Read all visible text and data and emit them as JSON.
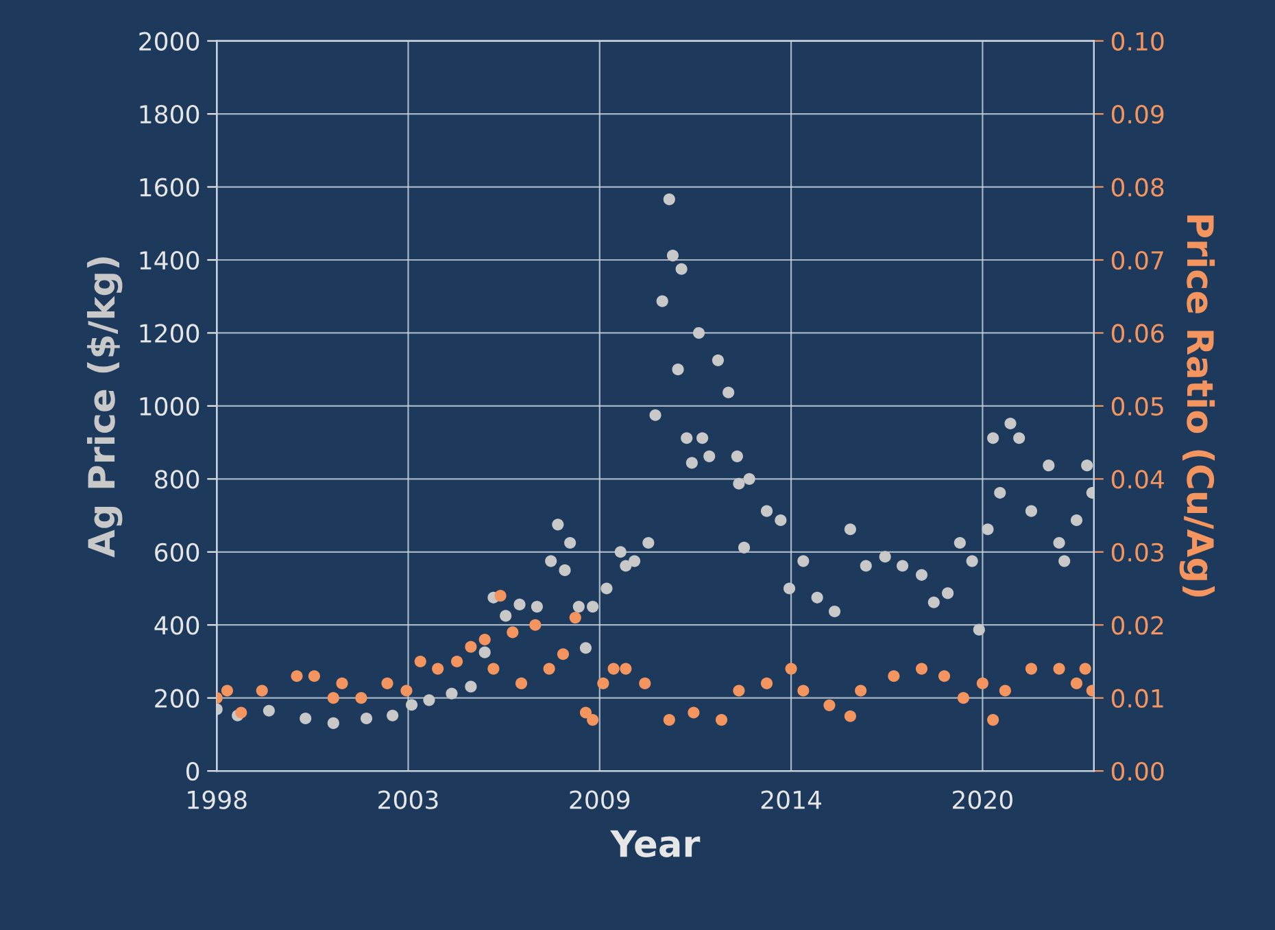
{
  "chart_data": {
    "type": "scatter",
    "xlabel": "Year",
    "ylabel": "Ag Price ($/kg)",
    "y2label": "Price Ratio (Cu/Ag)",
    "xlim": [
      1998,
      2023.2
    ],
    "xticks": [
      1998,
      {
        "value": 2003.5,
        "label": "2003"
      },
      2009,
      {
        "value": 2014.5,
        "label": "2014"
      },
      2020
    ],
    "ylim": [
      0,
      2000
    ],
    "yticks": [
      0,
      200,
      400,
      600,
      800,
      1000,
      1200,
      1400,
      1600,
      1800,
      2000
    ],
    "y2lim": [
      0,
      0.1
    ],
    "y2ticks": [
      {
        "value": 0,
        "label": "0.00"
      },
      {
        "value": 0.01,
        "label": "0.01"
      },
      {
        "value": 0.02,
        "label": "0.02"
      },
      {
        "value": 0.03,
        "label": "0.03"
      },
      {
        "value": 0.04,
        "label": "0.04"
      },
      {
        "value": 0.05,
        "label": "0.05"
      },
      {
        "value": 0.06,
        "label": "0.06"
      },
      {
        "value": 0.07,
        "label": "0.07"
      },
      {
        "value": 0.08,
        "label": "0.08"
      },
      {
        "value": 0.09,
        "label": "0.09"
      },
      {
        "value": 0.1,
        "label": "0.10"
      }
    ],
    "grid": true,
    "marker": "circle",
    "series": [
      {
        "color": "#c8c8c8",
        "x": [
          1998.0,
          1998.6,
          1999.5,
          2000.55,
          2001.35,
          2002.3,
          2003.05,
          2003.6,
          2004.1,
          2004.75,
          2005.3,
          2005.7,
          2005.95,
          2006.3,
          2006.7,
          2007.2,
          2007.6,
          2007.8,
          2008.0,
          2008.15,
          2008.4,
          2008.6,
          2008.8,
          2009.2,
          2009.6,
          2009.75,
          2010.0,
          2010.4,
          2010.6,
          2010.8,
          2011.0,
          2011.1,
          2011.25,
          2011.35,
          2011.5,
          2011.65,
          2011.85,
          2011.95,
          2012.15,
          2012.4,
          2012.7,
          2012.95,
          2013.0,
          2013.15,
          2013.3,
          2013.8,
          2014.2,
          2014.45,
          2014.85,
          2015.25,
          2015.75,
          2016.2,
          2016.65,
          2017.2,
          2017.7,
          2018.25,
          2018.6,
          2019.0,
          2019.35,
          2019.7,
          2019.9,
          2020.15,
          2020.3,
          2020.5,
          2020.8,
          2021.05,
          2021.4,
          2021.9,
          2022.2,
          2022.35,
          2022.7,
          2023.0,
          2023.15
        ],
        "values": [
          169,
          152,
          165,
          144,
          131,
          144,
          152,
          181,
          194,
          212,
          231,
          325,
          475,
          425,
          456,
          450,
          575,
          675,
          550,
          625,
          450,
          337,
          450,
          500,
          600,
          562,
          575,
          625,
          975,
          1287,
          1566,
          1412,
          1100,
          1375,
          912,
          844,
          1200,
          912,
          862,
          1125,
          1037,
          862,
          787,
          612,
          800,
          712,
          687,
          500,
          575,
          475,
          437,
          662,
          562,
          587,
          562,
          537,
          462,
          487,
          625,
          575,
          387,
          662,
          912,
          762,
          952,
          912,
          712,
          837,
          625,
          575,
          687,
          837,
          762
        ]
      },
      {
        "color": "#f4955f",
        "axis": "y2",
        "x": [
          1998.0,
          1998.3,
          1998.7,
          1999.3,
          2000.3,
          2000.8,
          2001.35,
          2001.6,
          2002.15,
          2002.9,
          2003.45,
          2003.85,
          2004.35,
          2004.9,
          2005.3,
          2005.7,
          2005.95,
          2006.15,
          2006.5,
          2006.75,
          2007.15,
          2007.55,
          2007.95,
          2008.3,
          2008.6,
          2008.8,
          2009.1,
          2009.4,
          2009.75,
          2010.3,
          2011.0,
          2011.7,
          2012.5,
          2013.0,
          2013.8,
          2014.5,
          2014.85,
          2015.6,
          2016.2,
          2016.5,
          2017.45,
          2018.25,
          2018.9,
          2019.45,
          2020.0,
          2020.3,
          2020.65,
          2021.4,
          2022.2,
          2022.7,
          2022.95,
          2023.15
        ],
        "values": [
          0.01,
          0.011,
          0.008,
          0.011,
          0.013,
          0.013,
          0.01,
          0.012,
          0.01,
          0.012,
          0.011,
          0.015,
          0.014,
          0.015,
          0.017,
          0.018,
          0.014,
          0.024,
          0.019,
          0.012,
          0.02,
          0.014,
          0.016,
          0.021,
          0.008,
          0.007,
          0.012,
          0.014,
          0.014,
          0.012,
          0.007,
          0.008,
          0.007,
          0.011,
          0.012,
          0.014,
          0.011,
          0.009,
          0.0075,
          0.011,
          0.013,
          0.014,
          0.013,
          0.01,
          0.012,
          0.007,
          0.011,
          0.014,
          0.014,
          0.012,
          0.014,
          0.011
        ]
      }
    ]
  }
}
